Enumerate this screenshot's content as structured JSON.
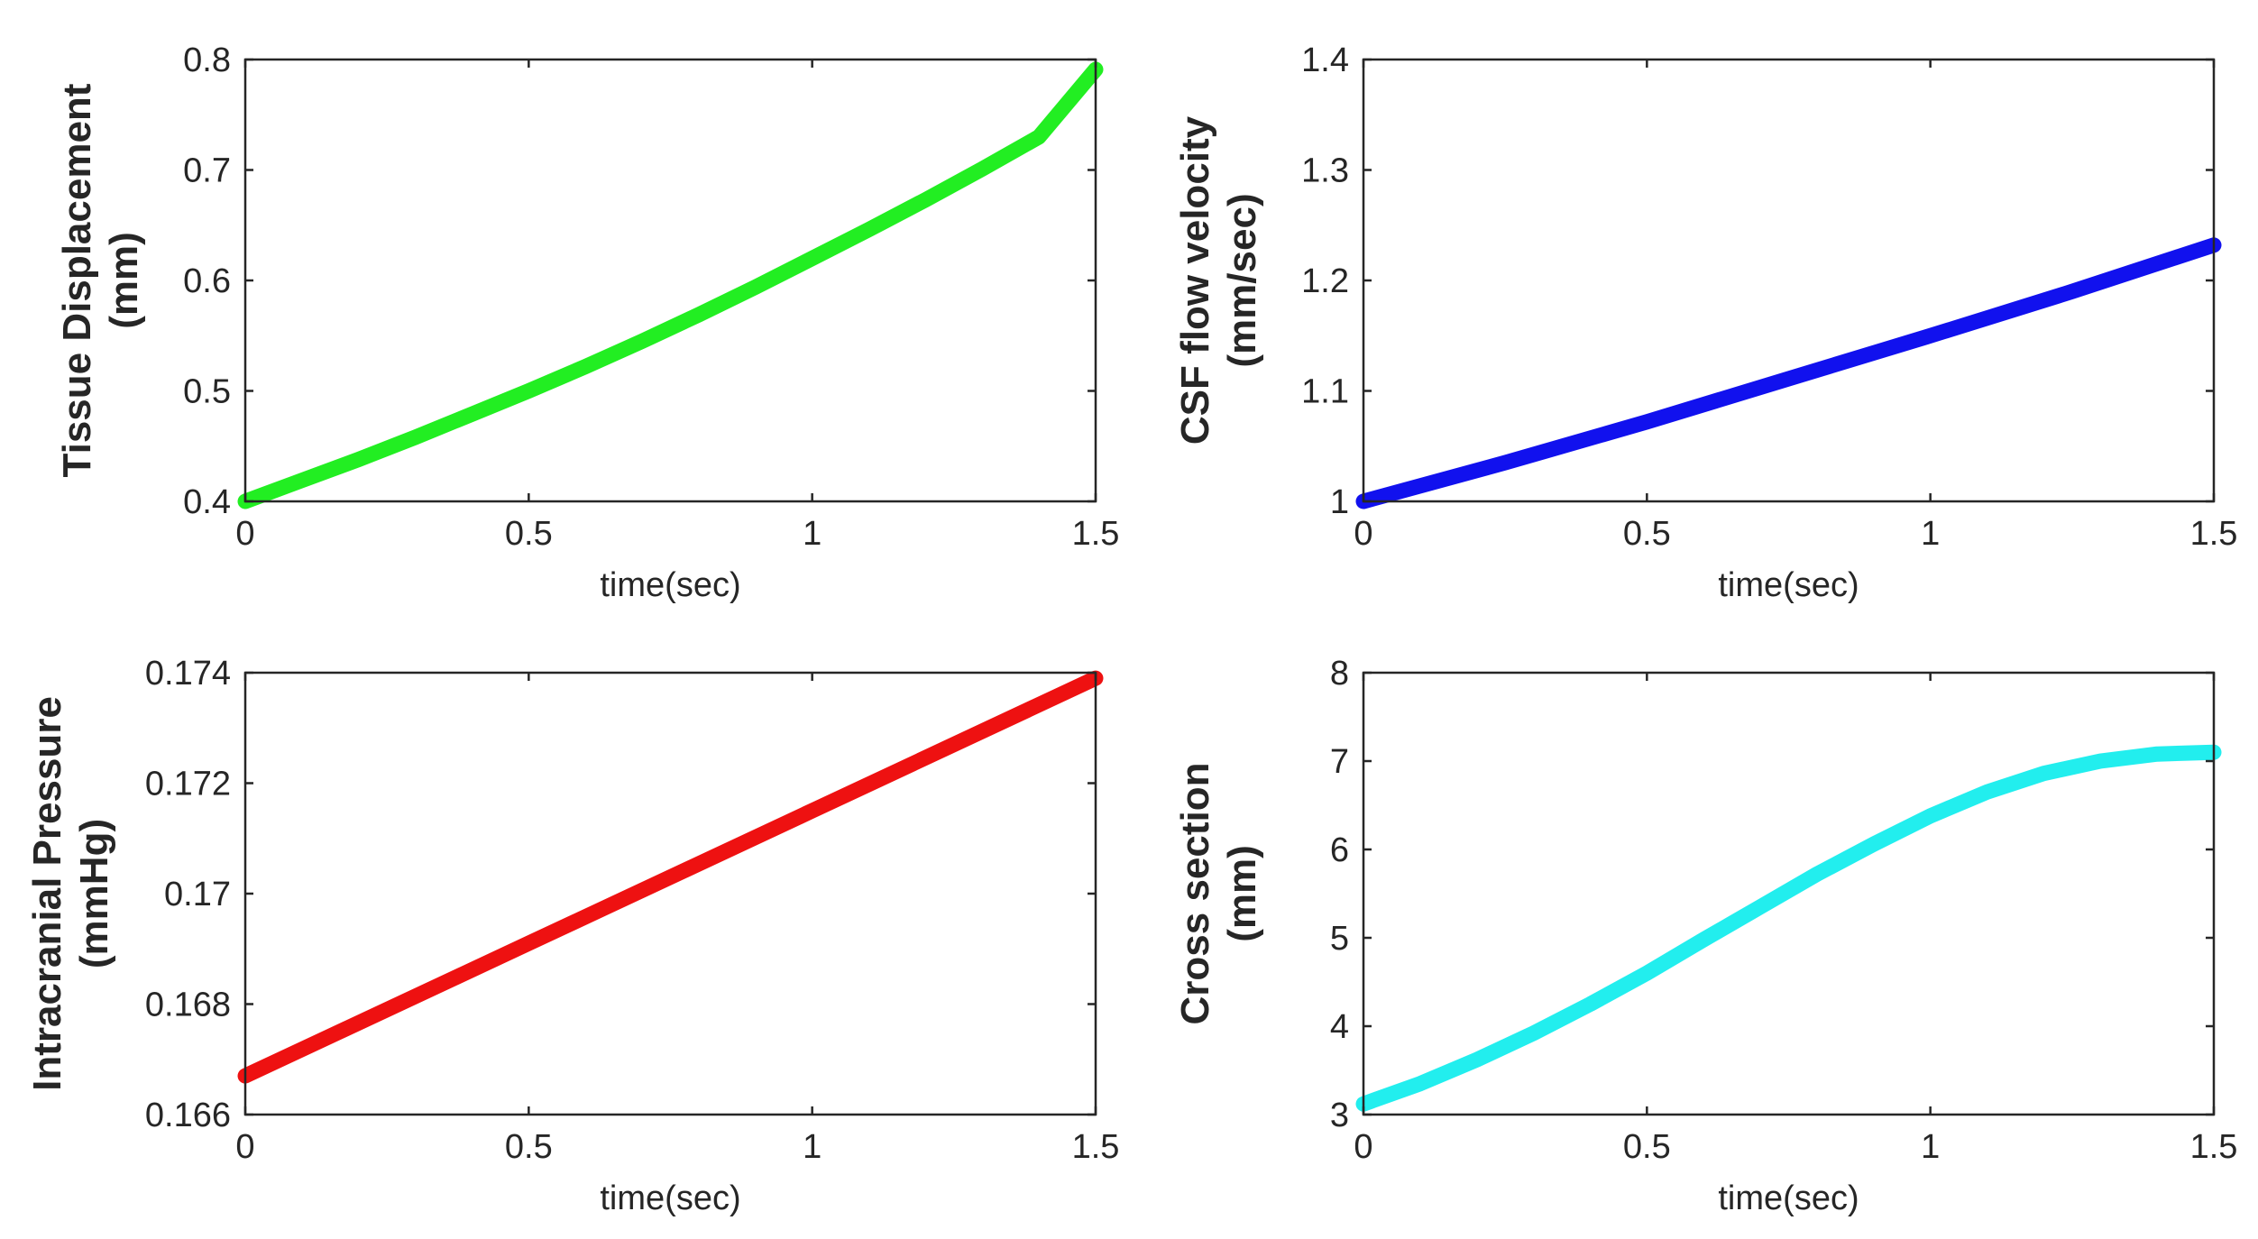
{
  "chart_data": [
    {
      "type": "line",
      "ylabel_lines": [
        "Tissue Displacement",
        "(mm)"
      ],
      "xlabel": "time(sec)",
      "xlim": [
        0,
        1.5
      ],
      "ylim": [
        0.4,
        0.8
      ],
      "xticks": [
        0,
        0.5,
        1,
        1.5
      ],
      "xtick_labels": [
        "0",
        "0.5",
        "1",
        "1.5"
      ],
      "yticks": [
        0.4,
        0.5,
        0.6,
        0.7,
        0.8
      ],
      "ytick_labels": [
        "0.4",
        "0.5",
        "0.6",
        "0.7",
        "0.8"
      ],
      "color": "#22ee22",
      "x": [
        0,
        0.1,
        0.2,
        0.3,
        0.4,
        0.5,
        0.6,
        0.7,
        0.8,
        0.9,
        1.0,
        1.1,
        1.2,
        1.3,
        1.4,
        1.5
      ],
      "y": [
        0.4,
        0.419,
        0.438,
        0.458,
        0.479,
        0.5,
        0.522,
        0.545,
        0.569,
        0.594,
        0.62,
        0.646,
        0.673,
        0.701,
        0.73,
        0.791
      ]
    },
    {
      "type": "line",
      "ylabel_lines": [
        "CSF flow velocity",
        "(mm/sec)"
      ],
      "xlabel": "time(sec)",
      "xlim": [
        0,
        1.5
      ],
      "ylim": [
        1,
        1.4
      ],
      "xticks": [
        0,
        0.5,
        1,
        1.5
      ],
      "xtick_labels": [
        "0",
        "0.5",
        "1",
        "1.5"
      ],
      "yticks": [
        1,
        1.1,
        1.2,
        1.3,
        1.4
      ],
      "ytick_labels": [
        "1",
        "1.1",
        "1.2",
        "1.3",
        "1.4"
      ],
      "color": "#1111ee",
      "x": [
        0,
        0.25,
        0.5,
        0.75,
        1.0,
        1.25,
        1.5
      ],
      "y": [
        1.0,
        1.035,
        1.072,
        1.111,
        1.15,
        1.19,
        1.232
      ]
    },
    {
      "type": "line",
      "ylabel_lines": [
        "Intracranial Pressure",
        "(mmHg)"
      ],
      "xlabel": "time(sec)",
      "xlim": [
        0,
        1.5
      ],
      "ylim": [
        0.166,
        0.174
      ],
      "xticks": [
        0,
        0.5,
        1,
        1.5
      ],
      "xtick_labels": [
        "0",
        "0.5",
        "1",
        "1.5"
      ],
      "yticks": [
        0.166,
        0.168,
        0.17,
        0.172,
        0.174
      ],
      "ytick_labels": [
        "0.166",
        "0.168",
        "0.17",
        "0.172",
        "0.174"
      ],
      "color": "#ee1111",
      "x": [
        0,
        0.5,
        1.0,
        1.5
      ],
      "y": [
        0.1667,
        0.1691,
        0.1715,
        0.1739
      ]
    },
    {
      "type": "line",
      "ylabel_lines": [
        "Cross section",
        "(mm)"
      ],
      "xlabel": "time(sec)",
      "xlim": [
        0,
        1.5
      ],
      "ylim": [
        3,
        8
      ],
      "xticks": [
        0,
        0.5,
        1,
        1.5
      ],
      "xtick_labels": [
        "0",
        "0.5",
        "1",
        "1.5"
      ],
      "yticks": [
        3,
        4,
        5,
        6,
        7,
        8
      ],
      "ytick_labels": [
        "3",
        "4",
        "5",
        "6",
        "7",
        "8"
      ],
      "color": "#22eeee",
      "x": [
        0,
        0.1,
        0.2,
        0.3,
        0.4,
        0.5,
        0.6,
        0.7,
        0.8,
        0.9,
        1.0,
        1.1,
        1.2,
        1.3,
        1.4,
        1.5
      ],
      "y": [
        3.12,
        3.35,
        3.62,
        3.92,
        4.25,
        4.6,
        4.98,
        5.35,
        5.72,
        6.06,
        6.38,
        6.65,
        6.86,
        7.0,
        7.08,
        7.1
      ]
    }
  ]
}
